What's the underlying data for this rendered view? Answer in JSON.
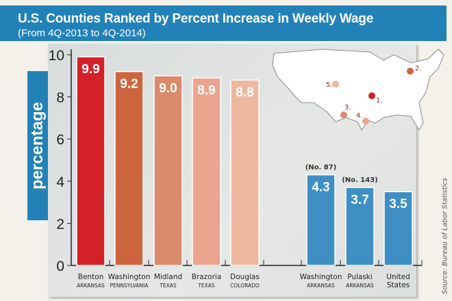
{
  "chart_data": {
    "type": "bar",
    "title": "U.S. Counties Ranked by Percent Increase in Weekly Wage",
    "subtitle": "(From 4Q-2013 to 4Q-2014)",
    "ylabel": "percentage",
    "xlabel": "",
    "ylim": [
      0,
      10
    ],
    "yticks": [
      "0",
      "2",
      "4",
      "6",
      "8",
      "10"
    ],
    "grid": false,
    "categories": [
      {
        "name": "Benton",
        "state": "ARKANSAS",
        "value": 9.9,
        "label": "9.9",
        "color": "#d42128",
        "rank": ""
      },
      {
        "name": "Washington",
        "state": "PENNSYLVANIA",
        "value": 9.2,
        "label": "9.2",
        "color": "#cc643e",
        "rank": ""
      },
      {
        "name": "Midland",
        "state": "TEXAS",
        "value": 9.0,
        "label": "9.0",
        "color": "#da8b6b",
        "rank": ""
      },
      {
        "name": "Brazoria",
        "state": "TEXAS",
        "value": 8.9,
        "label": "8.9",
        "color": "#eba58f",
        "rank": ""
      },
      {
        "name": "Douglas",
        "state": "COLORADO",
        "value": 8.8,
        "label": "8.8",
        "color": "#ecb9a0",
        "rank": ""
      },
      {
        "name": "Washington",
        "state": "ARKANSAS",
        "value": 4.3,
        "label": "4.3",
        "color": "#3f8fc4",
        "rank": "(No. 87)"
      },
      {
        "name": "Pulaski",
        "state": "ARKANSAS",
        "value": 3.7,
        "label": "3.7",
        "color": "#3f8fc4",
        "rank": "(No. 143)"
      },
      {
        "name": "United",
        "state": "States",
        "value": 3.5,
        "label": "3.5",
        "color": "#3f8fc4",
        "rank": ""
      }
    ],
    "map_markers": [
      "1.",
      "2.",
      "3.",
      "4.",
      "5."
    ]
  },
  "source": "Source: Bureau of Labor Statistics"
}
